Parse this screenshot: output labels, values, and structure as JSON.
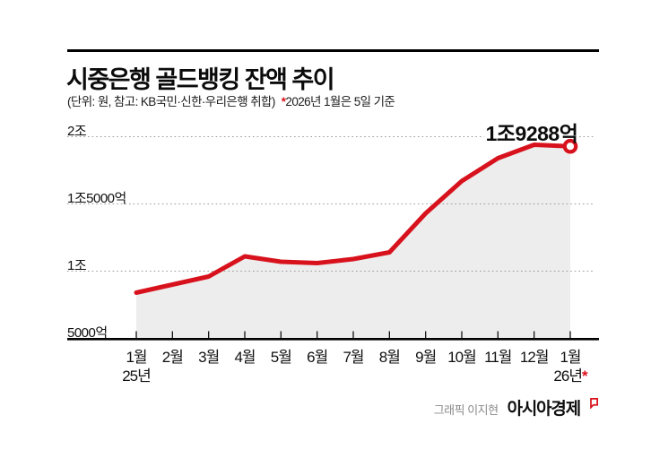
{
  "header": {
    "title": "시중은행 골드뱅킹 잔액 추이",
    "subtitle_unit": "(단위: 원, 참고: KB국민·신한·우리은행 취합)",
    "note_mark": "*",
    "note": "2026년 1월은 5일 기준"
  },
  "chart_data": {
    "type": "area",
    "title": "시중은행 골드뱅킹 잔액 추이",
    "unit": "원 (억 단위)",
    "categories": [
      "1월",
      "2월",
      "3월",
      "4월",
      "5월",
      "6월",
      "7월",
      "8월",
      "9월",
      "10월",
      "11월",
      "12월",
      "1월"
    ],
    "x_sub_first": "25년",
    "x_sub_last": "26년",
    "x_sub_last_mark": "*",
    "values_eok": [
      8400,
      9000,
      9600,
      11100,
      10700,
      10600,
      10900,
      11400,
      14300,
      16700,
      18400,
      19400,
      19288
    ],
    "y_ticks": [
      {
        "label": "2조",
        "value": 20000
      },
      {
        "label": "1조5000억",
        "value": 15000
      },
      {
        "label": "1조",
        "value": 10000
      },
      {
        "label": "5000억",
        "value": 5000
      }
    ],
    "ylim": [
      5000,
      20000
    ],
    "grid": "dotted-horizontal",
    "legend": "none",
    "annotation": "1조9288억",
    "line_color": "#d8121d",
    "area_color": "#ededed",
    "grid_color": "#9b9b9b",
    "axis_color": "#000000"
  },
  "footer": {
    "credit": "그래픽 이지현",
    "brand": "아시아경제"
  }
}
